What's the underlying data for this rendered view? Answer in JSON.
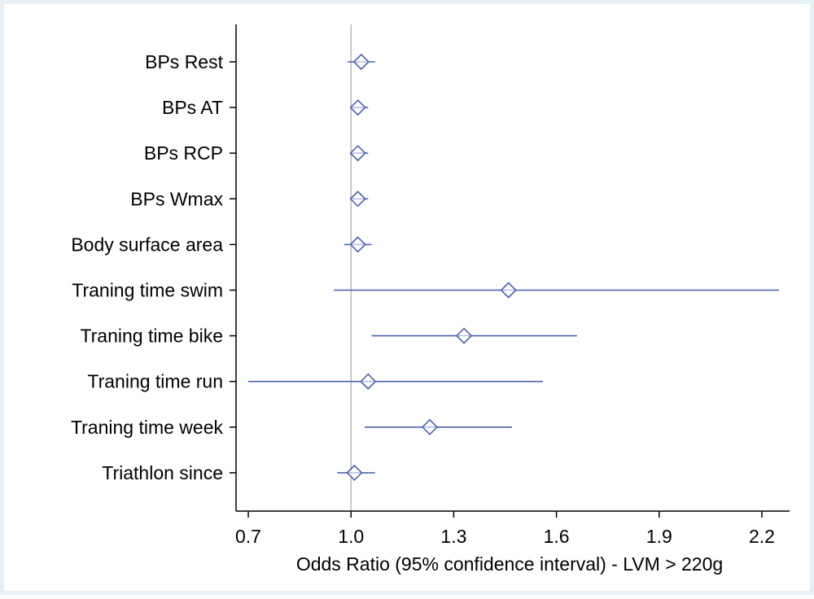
{
  "chart_data": {
    "type": "forest",
    "xlabel": "Odds Ratio (95% confidence interval) - LVM > 220g",
    "xlim": [
      0.67,
      2.27
    ],
    "xticks": [
      0.7,
      1.0,
      1.3,
      1.6,
      1.9,
      2.2
    ],
    "xtick_labels": [
      "0.7",
      "1.0",
      "1.3",
      "1.6",
      "1.9",
      "2.2"
    ],
    "reference_line": 1.0,
    "categories": [
      "BPs Rest",
      "BPs AT",
      "BPs RCP",
      "BPs Wmax",
      "Body surface area",
      "Traning time swim",
      "Traning time bike",
      "Traning time run",
      "Traning time week",
      "Triathlon since"
    ],
    "estimates": [
      1.03,
      1.02,
      1.02,
      1.02,
      1.02,
      1.46,
      1.33,
      1.05,
      1.23,
      1.01
    ],
    "ci_lower": [
      0.99,
      1.0,
      1.0,
      1.0,
      0.98,
      0.95,
      1.06,
      0.7,
      1.04,
      0.96
    ],
    "ci_upper": [
      1.07,
      1.05,
      1.05,
      1.05,
      1.06,
      2.25,
      1.66,
      1.56,
      1.47,
      1.07
    ],
    "colors": {
      "outer_background": "#e6f0f6",
      "plot_background": "#ffffff",
      "marker": "#4a62b0",
      "reference_line": "#b9b9b9",
      "axis": "#000000",
      "text": "#000000"
    },
    "grid": false,
    "legend": "none"
  }
}
